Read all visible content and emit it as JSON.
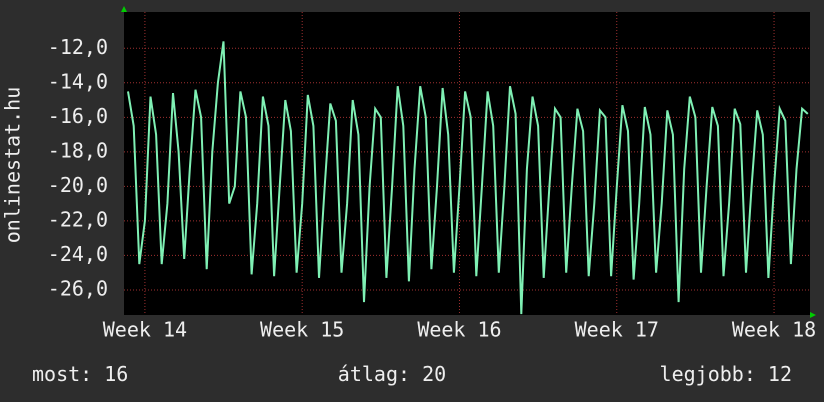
{
  "chart_data": {
    "type": "line",
    "y_label": "onlinestat.hu",
    "x": [
      -0.75,
      -0.5,
      -0.25,
      0,
      0.25,
      0.5,
      0.75,
      1,
      1.25,
      1.5,
      1.75,
      2,
      2.25,
      2.5,
      2.75,
      3,
      3.25,
      3.5,
      3.75,
      4,
      4.25,
      4.5,
      4.75,
      5,
      5.25,
      5.5,
      5.75,
      6,
      6.25,
      6.5,
      6.75,
      7,
      7.25,
      7.5,
      7.75,
      8,
      8.25,
      8.5,
      8.75,
      9,
      9.25,
      9.5,
      9.75,
      10,
      10.25,
      10.5,
      10.75,
      11,
      11.25,
      11.5,
      11.75,
      12,
      12.25,
      12.5,
      12.75,
      13,
      13.25,
      13.5,
      13.75,
      14,
      14.25,
      14.5,
      14.75,
      15,
      15.25,
      15.5,
      15.75,
      16,
      16.25,
      16.5,
      16.75,
      17,
      17.25,
      17.5,
      17.75,
      18,
      18.25,
      18.5,
      18.75,
      19,
      19.25,
      19.5,
      19.75,
      20,
      20.25,
      20.5,
      20.75,
      21,
      21.25,
      21.5,
      21.75,
      22,
      22.25,
      22.5,
      22.75,
      23,
      23.25,
      23.5,
      23.75,
      24,
      24.25,
      24.5,
      24.75,
      25,
      25.25,
      25.5,
      25.75,
      26,
      26.25,
      26.5,
      26.75,
      27,
      27.25,
      27.5,
      27.75,
      28,
      28.25,
      28.5,
      28.75,
      29,
      29.25,
      29.5
    ],
    "series": [
      {
        "name": "onlinestat.hu",
        "color": "#7ff0b4",
        "values": [
          -14.5,
          -16.5,
          -24.5,
          -22,
          -14.8,
          -17,
          -24.5,
          -21,
          -14.6,
          -18,
          -24.2,
          -19,
          -14.4,
          -16,
          -24.8,
          -18,
          -14,
          -11.6,
          -21,
          -20,
          -14.5,
          -16,
          -25.1,
          -21,
          -14.8,
          -16.5,
          -25.2,
          -20,
          -15,
          -16.8,
          -25,
          -21,
          -14.7,
          -16.5,
          -25.3,
          -20,
          -15.2,
          -16.2,
          -25,
          -21,
          -15,
          -17,
          -26.7,
          -20,
          -15.5,
          -16,
          -25.3,
          -20,
          -14.2,
          -16.5,
          -25.5,
          -19,
          -14.2,
          -16,
          -24.8,
          -20,
          -14.3,
          -17,
          -25,
          -20,
          -14.5,
          -16,
          -25.2,
          -20,
          -14.5,
          -16.5,
          -25,
          -20,
          -14.2,
          -15.8,
          -27.4,
          -19,
          -14.8,
          -16.5,
          -25.3,
          -20,
          -15.5,
          -16,
          -25,
          -20,
          -15.5,
          -16.8,
          -25.2,
          -21,
          -15.6,
          -16,
          -25.2,
          -20,
          -15.3,
          -16.8,
          -25.4,
          -21,
          -15.4,
          -17,
          -25,
          -21,
          -15.6,
          -17,
          -26.7,
          -19,
          -14.8,
          -16,
          -25,
          -20,
          -15.4,
          -16.5,
          -25.2,
          -21,
          -15.5,
          -16.4,
          -25,
          -20,
          -15.6,
          -17,
          -25.3,
          -20,
          -15.5,
          -16.2,
          -24.5,
          -19,
          -15.5,
          -15.8
        ]
      }
    ],
    "xlim": [
      -0.93,
      29.6
    ],
    "xticks": [
      {
        "value": 0,
        "label": "Week 14"
      },
      {
        "value": 7,
        "label": "Week 15"
      },
      {
        "value": 14,
        "label": "Week 16"
      },
      {
        "value": 21,
        "label": "Week 17"
      },
      {
        "value": 28,
        "label": "Week 18"
      }
    ],
    "ylim": [
      -27.45,
      -9.9
    ],
    "yticks": [
      {
        "value": -26,
        "label": "-26,0"
      },
      {
        "value": -24,
        "label": "-24,0"
      },
      {
        "value": -22,
        "label": "-22,0"
      },
      {
        "value": -20,
        "label": "-20,0"
      },
      {
        "value": -18,
        "label": "-18,0"
      },
      {
        "value": -16,
        "label": "-16,0"
      },
      {
        "value": -14,
        "label": "-14,0"
      },
      {
        "value": -12,
        "label": "-12,0"
      }
    ],
    "grid": true,
    "stats": [
      {
        "label": "most:",
        "value": 16
      },
      {
        "label": "átlag:",
        "value": 20
      },
      {
        "label": "legjobb:",
        "value": 12
      }
    ]
  }
}
